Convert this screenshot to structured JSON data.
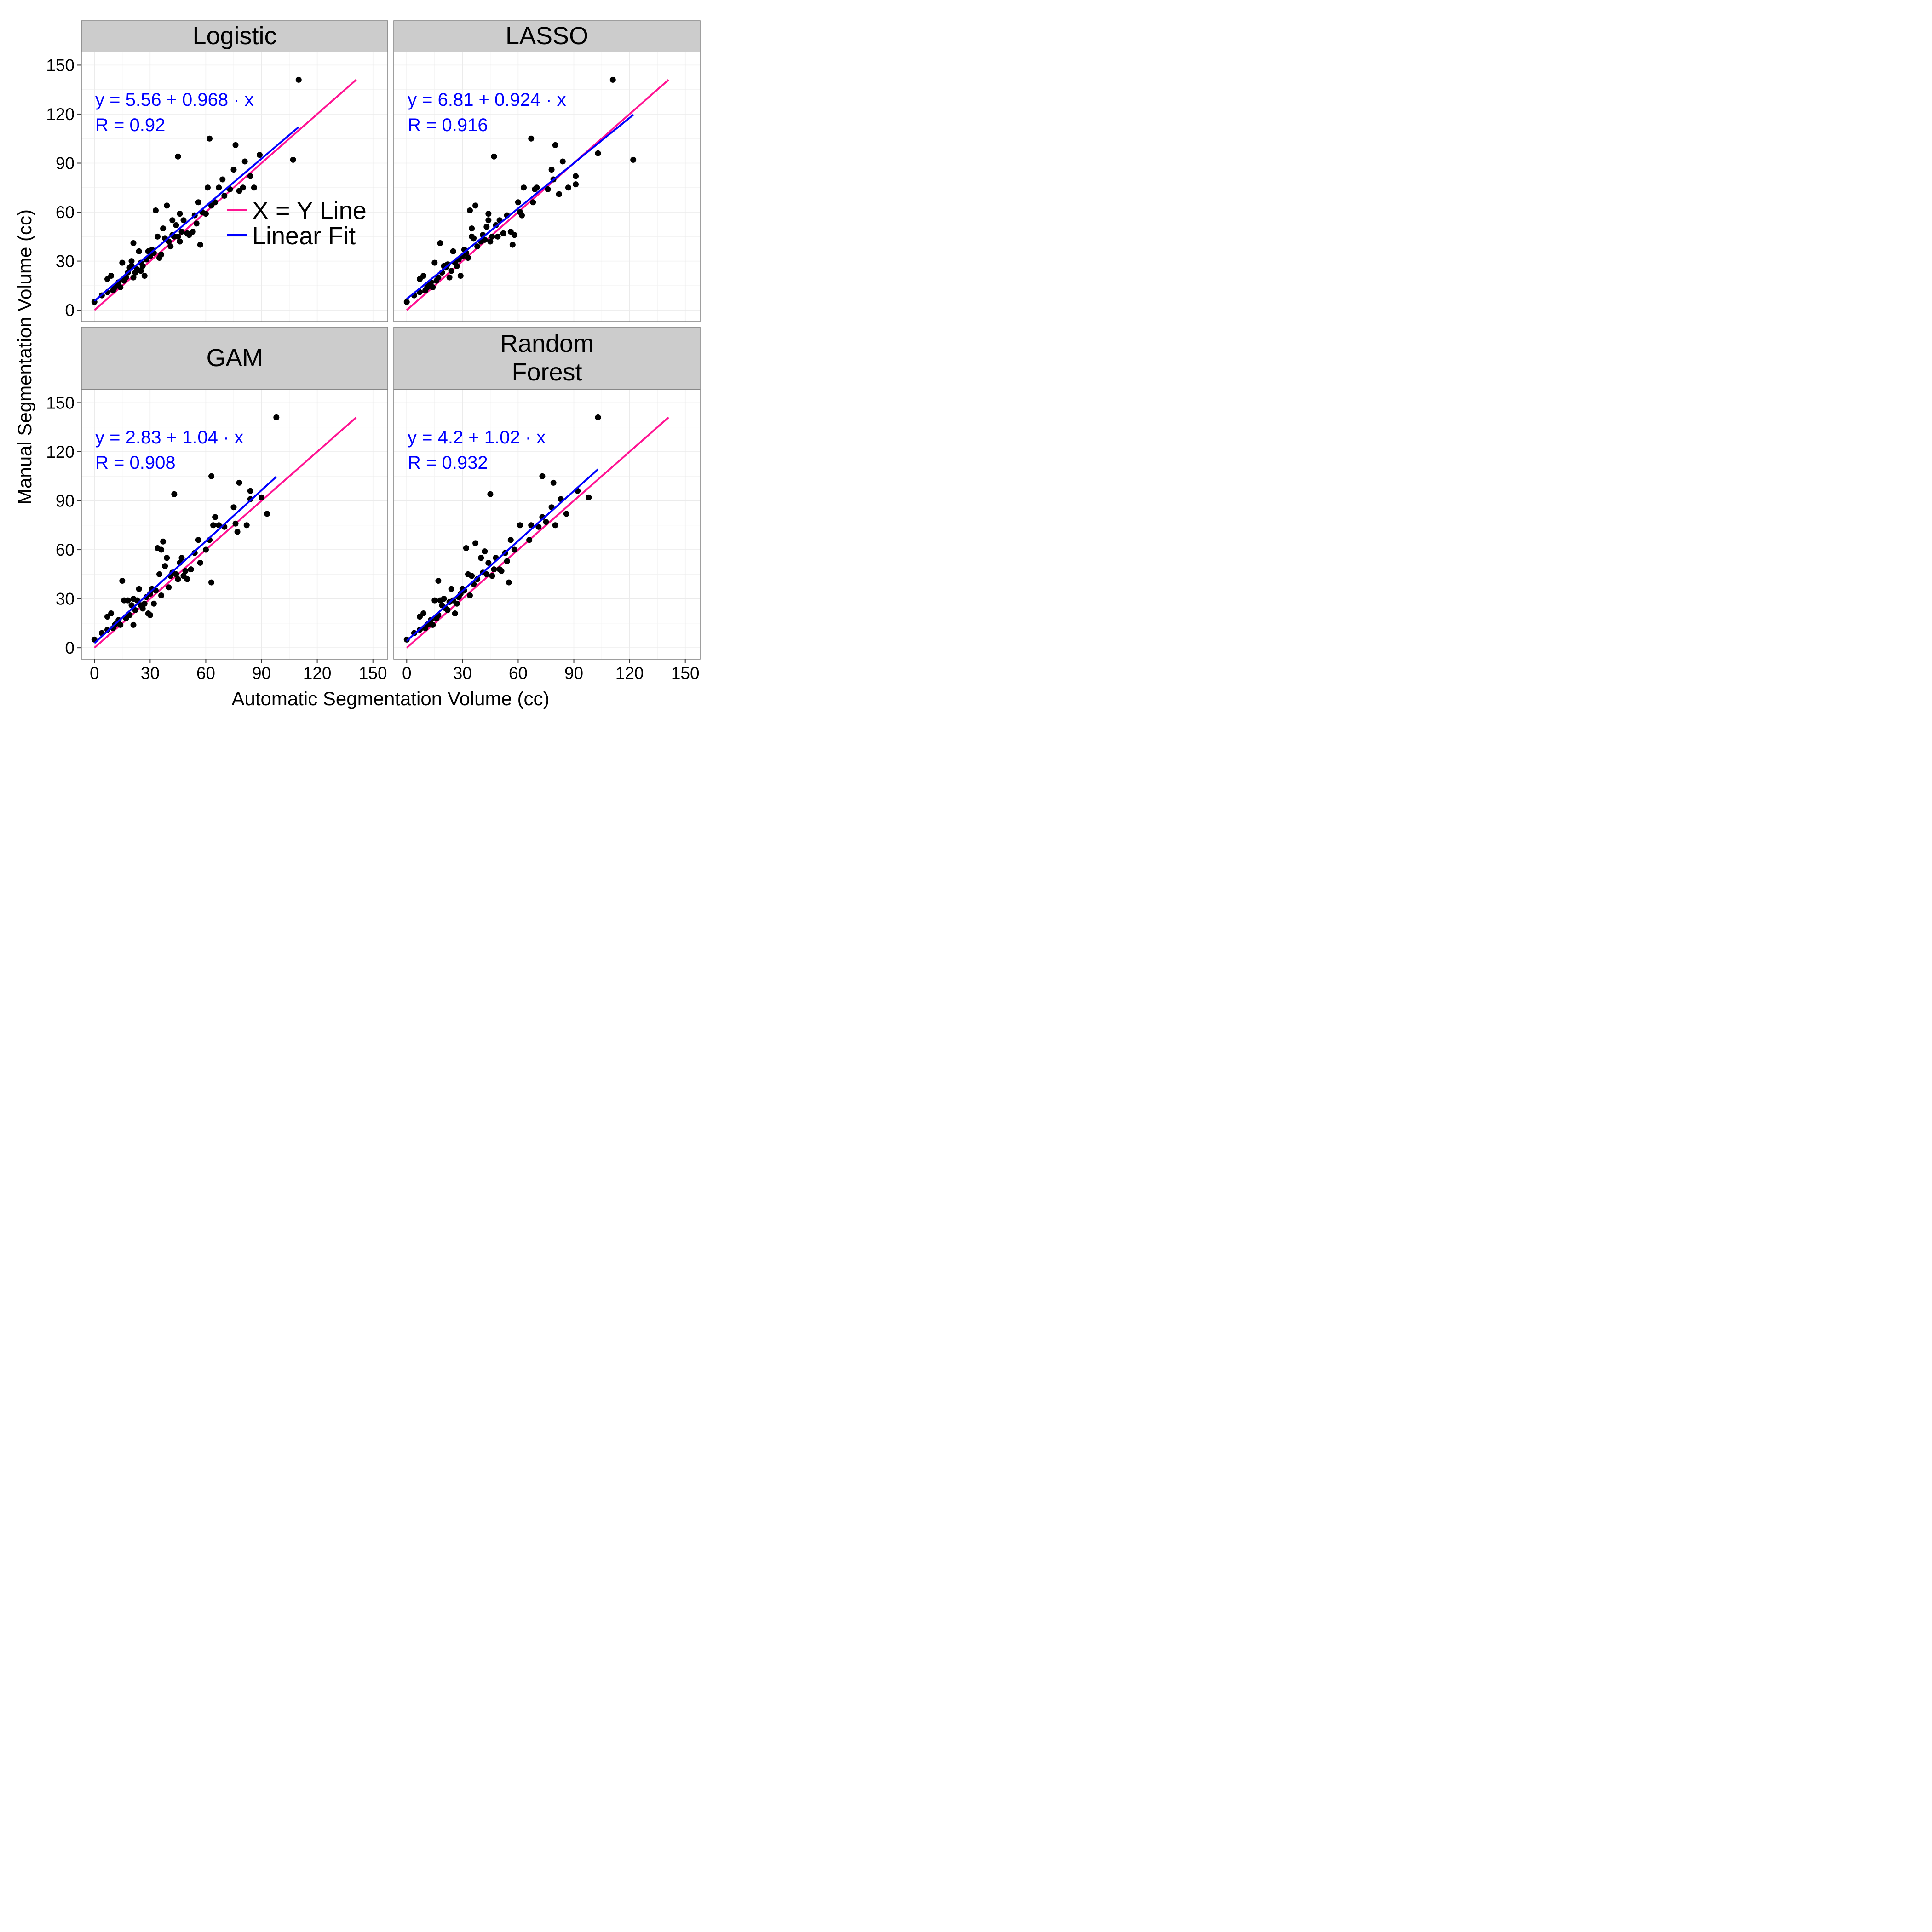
{
  "figure": {
    "xlabel": "Automatic Segmentation Volume (cc)",
    "ylabel": "Manual Segmentation Volume (cc)",
    "x_ticks": [
      0,
      30,
      60,
      90,
      120,
      150
    ],
    "y_ticks": [
      0,
      30,
      60,
      90,
      120,
      150
    ],
    "xlim": [
      -7,
      158
    ],
    "ylim": [
      -7,
      158
    ],
    "legend": {
      "placement": "inside-top-left-panel",
      "entries": [
        {
          "label": "X = Y Line",
          "color": "#ff1493"
        },
        {
          "label": "Linear Fit",
          "color": "#0000ff"
        }
      ]
    },
    "colors": {
      "strip_bg": "#cccccc",
      "panel_bg": "#ffffff",
      "grid": "#ebebeb",
      "points": "#000000",
      "annotation": "#0000ff"
    }
  },
  "chart_data": [
    {
      "type": "scatter",
      "title": "Logistic",
      "annotation_eq": "y = 5.56 + 0.968 · x",
      "annotation_r": "R = 0.92",
      "fit": {
        "intercept": 5.56,
        "slope": 0.968,
        "x_range": [
          0,
          110
        ]
      },
      "identity": {
        "x_range": [
          0,
          141
        ]
      },
      "points": [
        [
          0,
          5
        ],
        [
          4,
          9
        ],
        [
          7,
          11
        ],
        [
          7,
          19
        ],
        [
          9,
          21
        ],
        [
          10,
          12
        ],
        [
          11,
          14
        ],
        [
          12,
          15
        ],
        [
          13,
          17
        ],
        [
          14,
          14
        ],
        [
          15,
          29
        ],
        [
          16,
          18
        ],
        [
          17,
          20
        ],
        [
          18,
          23
        ],
        [
          19,
          26
        ],
        [
          20,
          27
        ],
        [
          20,
          30
        ],
        [
          21,
          20
        ],
        [
          21,
          41
        ],
        [
          22,
          23
        ],
        [
          23,
          25
        ],
        [
          24,
          36
        ],
        [
          25,
          29
        ],
        [
          25,
          24
        ],
        [
          26,
          27
        ],
        [
          27,
          21
        ],
        [
          28,
          31
        ],
        [
          29,
          36
        ],
        [
          30,
          33
        ],
        [
          31,
          37
        ],
        [
          32,
          35
        ],
        [
          33,
          61
        ],
        [
          34,
          45
        ],
        [
          35,
          32
        ],
        [
          36,
          34
        ],
        [
          37,
          50
        ],
        [
          38,
          44
        ],
        [
          39,
          64
        ],
        [
          40,
          42
        ],
        [
          41,
          39
        ],
        [
          42,
          46
        ],
        [
          42,
          55
        ],
        [
          43,
          45
        ],
        [
          44,
          52
        ],
        [
          45,
          94
        ],
        [
          45,
          45
        ],
        [
          46,
          42
        ],
        [
          46,
          59
        ],
        [
          47,
          48
        ],
        [
          48,
          55
        ],
        [
          50,
          47
        ],
        [
          51,
          46
        ],
        [
          53,
          48
        ],
        [
          54,
          58
        ],
        [
          55,
          53
        ],
        [
          56,
          66
        ],
        [
          57,
          40
        ],
        [
          58,
          60
        ],
        [
          60,
          59
        ],
        [
          61,
          75
        ],
        [
          62,
          105
        ],
        [
          63,
          64
        ],
        [
          65,
          66
        ],
        [
          67,
          75
        ],
        [
          69,
          80
        ],
        [
          70,
          70
        ],
        [
          73,
          74
        ],
        [
          75,
          86
        ],
        [
          76,
          101
        ],
        [
          78,
          73
        ],
        [
          80,
          75
        ],
        [
          81,
          91
        ],
        [
          84,
          82
        ],
        [
          86,
          75
        ],
        [
          89,
          95
        ],
        [
          107,
          92
        ],
        [
          110,
          141
        ]
      ]
    },
    {
      "type": "scatter",
      "title": "LASSO",
      "annotation_eq": "y = 6.81 + 0.924 · x",
      "annotation_r": "R = 0.916",
      "fit": {
        "intercept": 6.81,
        "slope": 0.924,
        "x_range": [
          0,
          122
        ]
      },
      "identity": {
        "x_range": [
          0,
          141
        ]
      },
      "points": [
        [
          0,
          5
        ],
        [
          4,
          9
        ],
        [
          7,
          11
        ],
        [
          7,
          19
        ],
        [
          9,
          21
        ],
        [
          10,
          12
        ],
        [
          11,
          14
        ],
        [
          12,
          15
        ],
        [
          13,
          17
        ],
        [
          14,
          14
        ],
        [
          15,
          29
        ],
        [
          16,
          18
        ],
        [
          17,
          20
        ],
        [
          18,
          41
        ],
        [
          19,
          23
        ],
        [
          20,
          27
        ],
        [
          21,
          26
        ],
        [
          22,
          28
        ],
        [
          23,
          20
        ],
        [
          24,
          24
        ],
        [
          25,
          36
        ],
        [
          26,
          29
        ],
        [
          27,
          27
        ],
        [
          28,
          31
        ],
        [
          29,
          21
        ],
        [
          30,
          33
        ],
        [
          31,
          37
        ],
        [
          32,
          35
        ],
        [
          33,
          32
        ],
        [
          34,
          61
        ],
        [
          35,
          45
        ],
        [
          35,
          50
        ],
        [
          36,
          44
        ],
        [
          37,
          64
        ],
        [
          38,
          39
        ],
        [
          40,
          42
        ],
        [
          41,
          46
        ],
        [
          42,
          43
        ],
        [
          43,
          51
        ],
        [
          44,
          55
        ],
        [
          44,
          59
        ],
        [
          45,
          42
        ],
        [
          46,
          45
        ],
        [
          47,
          94
        ],
        [
          48,
          52
        ],
        [
          49,
          45
        ],
        [
          50,
          55
        ],
        [
          52,
          47
        ],
        [
          54,
          58
        ],
        [
          56,
          48
        ],
        [
          57,
          40
        ],
        [
          58,
          46
        ],
        [
          60,
          66
        ],
        [
          61,
          60
        ],
        [
          62,
          58
        ],
        [
          63,
          75
        ],
        [
          67,
          105
        ],
        [
          68,
          66
        ],
        [
          69,
          74
        ],
        [
          70,
          75
        ],
        [
          76,
          74
        ],
        [
          78,
          86
        ],
        [
          79,
          80
        ],
        [
          80,
          101
        ],
        [
          82,
          71
        ],
        [
          84,
          91
        ],
        [
          87,
          75
        ],
        [
          91,
          77
        ],
        [
          91,
          82
        ],
        [
          103,
          96
        ],
        [
          111,
          141
        ],
        [
          122,
          92
        ]
      ]
    },
    {
      "type": "scatter",
      "title": "GAM",
      "annotation_eq": "y = 2.83 + 1.04 · x",
      "annotation_r": "R = 0.908",
      "fit": {
        "intercept": 2.83,
        "slope": 1.04,
        "x_range": [
          0,
          98
        ]
      },
      "identity": {
        "x_range": [
          0,
          141
        ]
      },
      "points": [
        [
          0,
          5
        ],
        [
          4,
          9
        ],
        [
          7,
          11
        ],
        [
          7,
          19
        ],
        [
          9,
          21
        ],
        [
          10,
          12
        ],
        [
          11,
          14
        ],
        [
          12,
          15
        ],
        [
          13,
          17
        ],
        [
          14,
          14
        ],
        [
          15,
          41
        ],
        [
          16,
          29
        ],
        [
          17,
          18
        ],
        [
          18,
          29
        ],
        [
          19,
          20
        ],
        [
          20,
          26
        ],
        [
          21,
          14
        ],
        [
          21,
          30
        ],
        [
          22,
          23
        ],
        [
          23,
          29
        ],
        [
          24,
          36
        ],
        [
          25,
          26
        ],
        [
          26,
          24
        ],
        [
          27,
          27
        ],
        [
          28,
          31
        ],
        [
          29,
          21
        ],
        [
          30,
          20
        ],
        [
          30,
          33
        ],
        [
          31,
          36
        ],
        [
          32,
          27
        ],
        [
          33,
          35
        ],
        [
          34,
          61
        ],
        [
          35,
          45
        ],
        [
          36,
          60
        ],
        [
          36,
          32
        ],
        [
          37,
          65
        ],
        [
          38,
          50
        ],
        [
          39,
          55
        ],
        [
          40,
          37
        ],
        [
          41,
          44
        ],
        [
          42,
          46
        ],
        [
          43,
          94
        ],
        [
          44,
          45
        ],
        [
          45,
          42
        ],
        [
          46,
          52
        ],
        [
          47,
          55
        ],
        [
          48,
          44
        ],
        [
          49,
          47
        ],
        [
          50,
          42
        ],
        [
          52,
          48
        ],
        [
          54,
          58
        ],
        [
          56,
          66
        ],
        [
          57,
          52
        ],
        [
          60,
          60
        ],
        [
          62,
          66
        ],
        [
          63,
          40
        ],
        [
          63,
          105
        ],
        [
          64,
          75
        ],
        [
          65,
          80
        ],
        [
          67,
          75
        ],
        [
          70,
          74
        ],
        [
          75,
          86
        ],
        [
          76,
          76
        ],
        [
          77,
          71
        ],
        [
          78,
          101
        ],
        [
          82,
          75
        ],
        [
          84,
          91
        ],
        [
          84,
          96
        ],
        [
          90,
          92
        ],
        [
          93,
          82
        ],
        [
          98,
          141
        ]
      ]
    },
    {
      "type": "scatter",
      "title": "Random Forest",
      "annotation_eq": "y = 4.2 + 1.02 · x",
      "annotation_r": "R = 0.932",
      "fit": {
        "intercept": 4.2,
        "slope": 1.02,
        "x_range": [
          0,
          103
        ]
      },
      "identity": {
        "x_range": [
          0,
          141
        ]
      },
      "points": [
        [
          0,
          5
        ],
        [
          4,
          9
        ],
        [
          7,
          11
        ],
        [
          7,
          19
        ],
        [
          9,
          21
        ],
        [
          10,
          12
        ],
        [
          11,
          14
        ],
        [
          12,
          15
        ],
        [
          13,
          17
        ],
        [
          14,
          14
        ],
        [
          15,
          29
        ],
        [
          16,
          18
        ],
        [
          17,
          20
        ],
        [
          17,
          41
        ],
        [
          18,
          29
        ],
        [
          19,
          26
        ],
        [
          20,
          30
        ],
        [
          21,
          24
        ],
        [
          22,
          23
        ],
        [
          23,
          28
        ],
        [
          24,
          36
        ],
        [
          25,
          29
        ],
        [
          26,
          21
        ],
        [
          27,
          27
        ],
        [
          28,
          31
        ],
        [
          29,
          33
        ],
        [
          30,
          36
        ],
        [
          31,
          35
        ],
        [
          32,
          61
        ],
        [
          33,
          45
        ],
        [
          34,
          32
        ],
        [
          35,
          44
        ],
        [
          36,
          39
        ],
        [
          37,
          64
        ],
        [
          38,
          42
        ],
        [
          40,
          55
        ],
        [
          41,
          46
        ],
        [
          42,
          59
        ],
        [
          43,
          45
        ],
        [
          44,
          52
        ],
        [
          45,
          94
        ],
        [
          46,
          44
        ],
        [
          47,
          48
        ],
        [
          48,
          55
        ],
        [
          50,
          48
        ],
        [
          51,
          47
        ],
        [
          53,
          58
        ],
        [
          54,
          53
        ],
        [
          55,
          40
        ],
        [
          56,
          66
        ],
        [
          58,
          60
        ],
        [
          61,
          75
        ],
        [
          66,
          66
        ],
        [
          67,
          75
        ],
        [
          71,
          74
        ],
        [
          73,
          80
        ],
        [
          73,
          105
        ],
        [
          75,
          77
        ],
        [
          78,
          86
        ],
        [
          79,
          101
        ],
        [
          80,
          75
        ],
        [
          83,
          91
        ],
        [
          86,
          82
        ],
        [
          92,
          96
        ],
        [
          98,
          92
        ],
        [
          103,
          141
        ]
      ]
    }
  ]
}
